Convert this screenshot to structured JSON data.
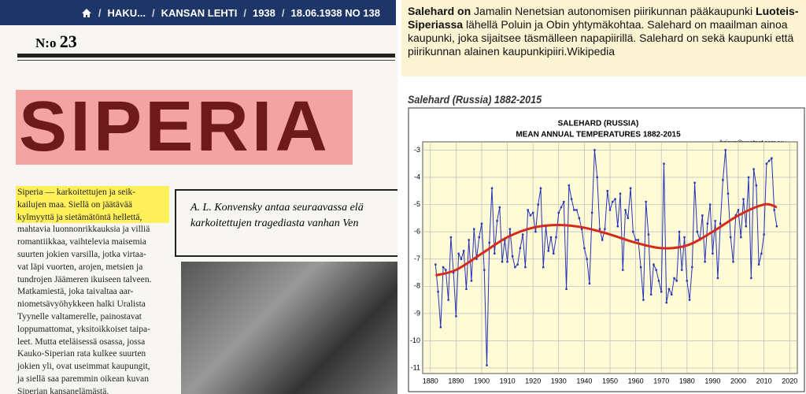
{
  "header": {
    "items": [
      "HAKU...",
      "KANSAN LEHTI",
      "1938",
      "18.06.1938 NO 138"
    ],
    "separator": "/"
  },
  "newspaper": {
    "number_label": "N:o",
    "number": "23",
    "headline": "SIPERIA",
    "article_lines": [
      "Siperia — karkoitettujen ja seik-",
      "kailujen maa. Siellä on jäätävää",
      "kylmyyttä ja sietämätöntä hellettä,",
      "mahtavia luonnonrikkauksia ja villiä",
      "romantiikkaa, vaihtelevia maisemia",
      "suurten jokien varsilla, jotka virtaa-",
      "vat läpi vuorten, arojen, metsien ja",
      "tundrojen Jäämeren ikuiseen talveen.",
      "Matkamiestä, joka taivaltaa aar-",
      "niometsävyöhykkeen halki Uralista",
      "Tyynelle valtamerelle, painostavat",
      "loppumattomat, yksitoikkoiset taipa-",
      "leet. Mutta eteläisessä osassa, jossa",
      "Kauko-Siperian rata kulkee suurten",
      "jokien yli, ovat useimmat kaupungit,",
      "ja siellä saa paremmin oikean kuvan",
      "Siperian kansanelämästä."
    ],
    "box_lines": [
      "A. L. Konvensky antaa seuraavassa elä",
      "karkoitettujen tragediasta vanhan Ven"
    ]
  },
  "info": {
    "runs": [
      {
        "text": "Salehard on",
        "bold": true
      },
      {
        "text": " Jamalin Nenetsian autonomisen piirikunnan pääkaupunki ",
        "bold": false
      },
      {
        "text": "Luoteis-Siperiassa",
        "bold": true
      },
      {
        "text": " lähellä Poluin ja Obin yhtymäkohtaa. Salehard on maailman ainoa kaupunki, joka sijaitsee täsmälleen napapiirillä. Salehard on sekä kaupunki että piirikunnan alainen kaupunkipiiri.Wikipedia",
        "bold": false
      }
    ]
  },
  "chart_caption": "Salehard (Russia) 1882-2015",
  "chart_data": {
    "type": "line",
    "title": "SALEHARD (RUSSIA)",
    "subtitle": "MEAN ANNUAL TEMPERATURES 1882-2015",
    "credit": "brigun@westnet.com.au",
    "x": [
      1882,
      1883,
      1884,
      1885,
      1886,
      1887,
      1888,
      1889,
      1890,
      1891,
      1892,
      1893,
      1894,
      1895,
      1896,
      1897,
      1898,
      1899,
      1900,
      1901,
      1902,
      1903,
      1904,
      1905,
      1906,
      1907,
      1908,
      1909,
      1910,
      1911,
      1912,
      1913,
      1914,
      1915,
      1916,
      1917,
      1918,
      1919,
      1920,
      1921,
      1922,
      1923,
      1924,
      1925,
      1926,
      1927,
      1928,
      1929,
      1930,
      1931,
      1932,
      1933,
      1934,
      1935,
      1936,
      1937,
      1938,
      1939,
      1940,
      1941,
      1942,
      1943,
      1944,
      1945,
      1946,
      1947,
      1948,
      1949,
      1950,
      1951,
      1952,
      1953,
      1954,
      1955,
      1956,
      1957,
      1958,
      1959,
      1960,
      1961,
      1962,
      1963,
      1964,
      1965,
      1966,
      1967,
      1968,
      1969,
      1970,
      1971,
      1972,
      1973,
      1974,
      1975,
      1976,
      1977,
      1978,
      1979,
      1980,
      1981,
      1982,
      1983,
      1984,
      1985,
      1986,
      1987,
      1988,
      1989,
      1990,
      1991,
      1992,
      1993,
      1994,
      1995,
      1996,
      1997,
      1998,
      1999,
      2000,
      2001,
      2002,
      2003,
      2004,
      2005,
      2006,
      2007,
      2008,
      2009,
      2010,
      2011,
      2012,
      2013,
      2014,
      2015
    ],
    "series": [
      {
        "color": "#2433b8",
        "values": [
          -7.2,
          -8.2,
          -9.5,
          -7.3,
          -7.4,
          -8.5,
          -6.2,
          -7.5,
          -9.1,
          -6.8,
          -7.0,
          -6.7,
          -8.1,
          -6.3,
          -7.8,
          -5.9,
          -7.0,
          -6.2,
          -5.7,
          -7.4,
          -10.9,
          -6.4,
          -4.4,
          -6.8,
          -5.6,
          -5.1,
          -7.1,
          -6.3,
          -7.1,
          -5.9,
          -6.9,
          -7.3,
          -7.2,
          -6.6,
          -6.1,
          -7.3,
          -5.2,
          -5.4,
          -5.3,
          -6.0,
          -5.0,
          -4.4,
          -7.3,
          -5.8,
          -6.7,
          -6.2,
          -6.8,
          -6.2,
          -5.3,
          -5.1,
          -4.9,
          -8.1,
          -4.3,
          -4.8,
          -5.2,
          -5.2,
          -5.5,
          -5.9,
          -6.6,
          -7.0,
          -7.9,
          -5.3,
          -3.0,
          -4.0,
          -5.9,
          -6.3,
          -5.9,
          -4.5,
          -5.2,
          -4.9,
          -4.8,
          -5.8,
          -4.6,
          -7.4,
          -5.2,
          -5.5,
          -4.4,
          -6.0,
          -6.3,
          -6.3,
          -7.3,
          -8.5,
          -4.9,
          -6.1,
          -8.3,
          -7.2,
          -7.4,
          -7.8,
          -8.2,
          -3.5,
          -8.6,
          -8.1,
          -8.3,
          -7.7,
          -7.8,
          -6.0,
          -7.4,
          -6.2,
          -7.8,
          -8.5,
          -7.3,
          -4.2,
          -6.0,
          -6.3,
          -5.4,
          -7.1,
          -5.7,
          -5.0,
          -6.8,
          -5.6,
          -7.7,
          -5.7,
          -4.1,
          -3.0,
          -4.6,
          -6.2,
          -7.1,
          -5.4,
          -5.2,
          -6.2,
          -4.8,
          -5.8,
          -4.0,
          -7.7,
          -3.7,
          -4.3,
          -7.2,
          -6.8,
          -6.1,
          -3.5,
          -3.4,
          -3.3,
          -5.2,
          -5.8
        ]
      },
      {
        "color": "#d42a1c",
        "x": [
          1882,
          1890,
          1900,
          1910,
          1920,
          1930,
          1940,
          1950,
          1960,
          1970,
          1980,
          1990,
          2000,
          2010,
          2015
        ],
        "values": [
          -7.6,
          -7.4,
          -6.8,
          -6.2,
          -5.85,
          -5.75,
          -5.85,
          -6.1,
          -6.4,
          -6.6,
          -6.5,
          -6.0,
          -5.4,
          -5.0,
          -5.1
        ]
      }
    ],
    "xlim": [
      1877,
      2023
    ],
    "xticks": [
      1880,
      1890,
      1900,
      1910,
      1920,
      1930,
      1940,
      1950,
      1960,
      1970,
      1980,
      1990,
      2000,
      2010,
      2020
    ],
    "ylim": [
      -11.2,
      -2.7
    ],
    "yticks": [
      -11,
      -10,
      -9,
      -8,
      -7,
      -6,
      -5,
      -4,
      -3
    ],
    "grid": true
  }
}
